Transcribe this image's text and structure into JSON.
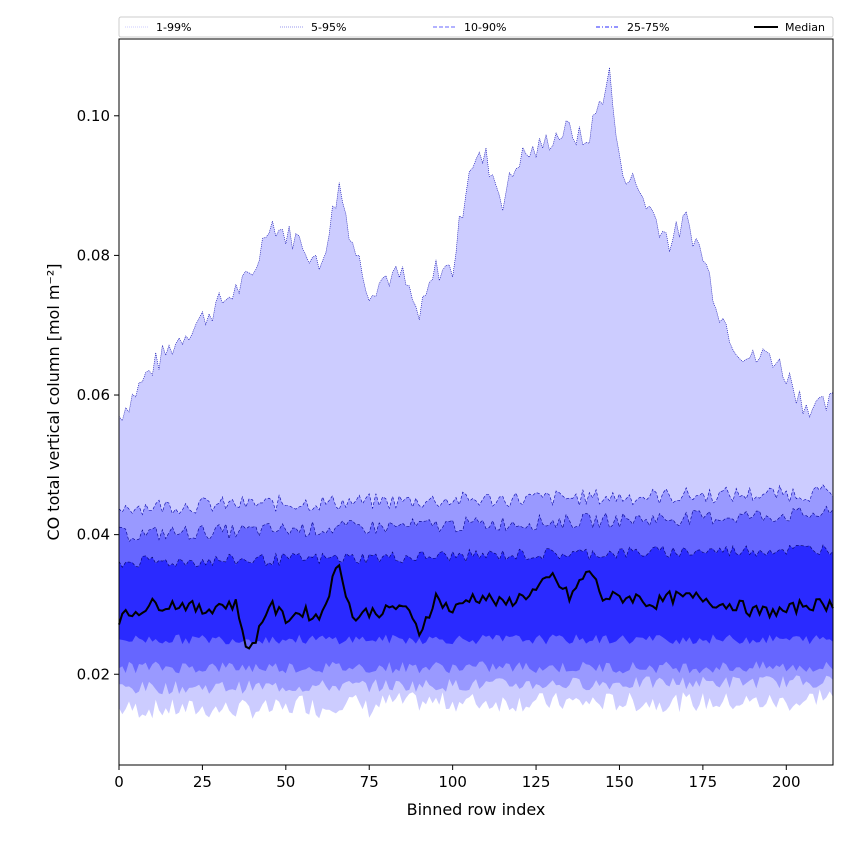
{
  "chart_data": {
    "type": "area",
    "xlabel": "Binned row index",
    "ylabel": "CO total vertical column [mol m⁻²]",
    "xlim": [
      0,
      214
    ],
    "ylim": [
      0.007,
      0.111
    ],
    "xticks": [
      0,
      25,
      50,
      75,
      100,
      125,
      150,
      175,
      200
    ],
    "yticks": [
      0.02,
      0.04,
      0.06,
      0.08,
      0.1
    ],
    "ytick_labels": [
      "0.02",
      "0.04",
      "0.06",
      "0.08",
      "0.10"
    ],
    "legend_position": "top, full width",
    "legend": [
      {
        "label": "1-99%",
        "color": "#ccccff",
        "style": "dotted-thin"
      },
      {
        "label": "5-95%",
        "color": "#9999ee",
        "style": "dotted"
      },
      {
        "label": "10-90%",
        "color": "#6666ff",
        "style": "dashed"
      },
      {
        "label": "25-75%",
        "color": "#2a2aff",
        "style": "dashdot"
      },
      {
        "label": "Median",
        "color": "#000000",
        "style": "solid"
      }
    ],
    "bands": [
      {
        "name": "1-99%",
        "fill": "#ccccff",
        "edge": "#0000aa",
        "x": [
          0,
          10,
          20,
          30,
          40,
          45,
          50,
          55,
          60,
          66,
          70,
          75,
          80,
          85,
          90,
          95,
          100,
          105,
          110,
          115,
          120,
          125,
          130,
          135,
          140,
          147,
          150,
          155,
          160,
          165,
          170,
          175,
          180,
          185,
          190,
          195,
          200,
          205,
          210,
          214
        ],
        "upper": [
          0.057,
          0.064,
          0.069,
          0.073,
          0.077,
          0.085,
          0.083,
          0.082,
          0.078,
          0.09,
          0.082,
          0.075,
          0.077,
          0.077,
          0.071,
          0.078,
          0.078,
          0.093,
          0.094,
          0.088,
          0.094,
          0.095,
          0.097,
          0.098,
          0.096,
          0.106,
          0.093,
          0.09,
          0.086,
          0.082,
          0.085,
          0.08,
          0.072,
          0.067,
          0.065,
          0.066,
          0.063,
          0.059,
          0.058,
          0.059
        ],
        "lower": [
          0.015,
          0.015,
          0.015,
          0.015,
          0.015,
          0.015,
          0.015,
          0.016,
          0.015,
          0.016,
          0.016,
          0.015,
          0.016,
          0.016,
          0.016,
          0.016,
          0.016,
          0.016,
          0.016,
          0.016,
          0.016,
          0.016,
          0.016,
          0.016,
          0.016,
          0.016,
          0.016,
          0.016,
          0.016,
          0.016,
          0.016,
          0.016,
          0.016,
          0.016,
          0.016,
          0.016,
          0.016,
          0.016,
          0.017,
          0.017
        ]
      },
      {
        "name": "5-95%",
        "fill": "#9999ff",
        "edge": "#0000aa",
        "x": [
          0,
          214
        ],
        "upper": [
          0.044,
          0.046
        ],
        "lower": [
          0.018,
          0.019
        ]
      },
      {
        "name": "10-90%",
        "fill": "#6666ff",
        "edge": "#000088",
        "x": [
          0,
          214
        ],
        "upper": [
          0.04,
          0.043
        ],
        "lower": [
          0.021,
          0.021
        ]
      },
      {
        "name": "25-75%",
        "fill": "#2a2aff",
        "edge": "#000066",
        "x": [
          0,
          214
        ],
        "upper": [
          0.036,
          0.038
        ],
        "lower": [
          0.025,
          0.025
        ]
      }
    ],
    "series": [
      {
        "name": "Median",
        "color": "#000000",
        "x": [
          0,
          5,
          10,
          15,
          20,
          25,
          30,
          35,
          39,
          45,
          50,
          55,
          60,
          66,
          70,
          75,
          80,
          85,
          90,
          95,
          100,
          105,
          110,
          115,
          120,
          125,
          130,
          135,
          141,
          145,
          150,
          155,
          160,
          165,
          170,
          175,
          180,
          185,
          190,
          195,
          200,
          205,
          210,
          214
        ],
        "values": [
          0.028,
          0.029,
          0.03,
          0.03,
          0.03,
          0.029,
          0.03,
          0.03,
          0.023,
          0.03,
          0.028,
          0.029,
          0.028,
          0.036,
          0.028,
          0.029,
          0.029,
          0.03,
          0.026,
          0.031,
          0.029,
          0.031,
          0.031,
          0.03,
          0.031,
          0.032,
          0.034,
          0.031,
          0.035,
          0.031,
          0.031,
          0.031,
          0.03,
          0.031,
          0.031,
          0.031,
          0.03,
          0.03,
          0.029,
          0.029,
          0.029,
          0.03,
          0.03,
          0.03
        ]
      }
    ]
  }
}
